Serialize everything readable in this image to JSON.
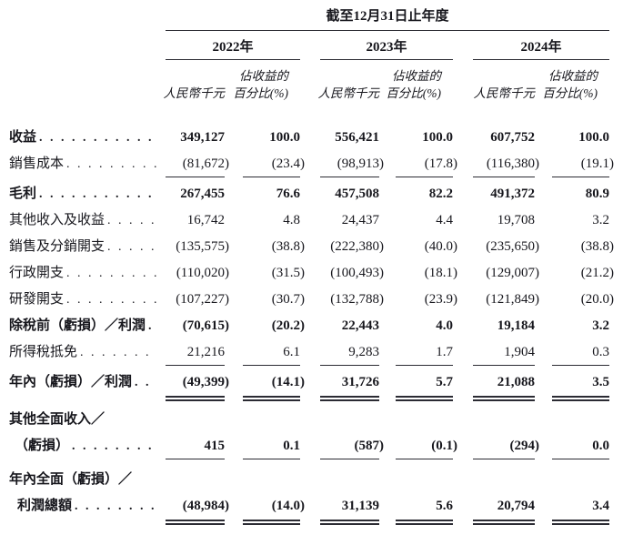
{
  "header": {
    "period_title": "截至12月31日止年度",
    "years": [
      "2022年",
      "2023年",
      "2024年"
    ],
    "pct_label_line1": "佔收益的",
    "pct_label_line2": "百分比(%)",
    "amount_label": "人民幣千元"
  },
  "table": {
    "leader_dots": ". . . . . . . . . . . . . . . . . . . . .",
    "columns": [
      "2022-amount",
      "2022-pct",
      "2023-amount",
      "2023-pct",
      "2024-amount",
      "2024-pct"
    ],
    "rows": [
      {
        "label": "收益",
        "bold": true,
        "leader": true,
        "rule": "none",
        "values": [
          "349,127",
          "100.0",
          "556,421",
          "100.0",
          "607,752",
          "100.0"
        ]
      },
      {
        "label": "銷售成本",
        "bold": false,
        "leader": true,
        "rule": "single",
        "values": [
          "(81,672)",
          "(23.4)",
          "(98,913)",
          "(17.8)",
          "(116,380)",
          "(19.1)"
        ]
      },
      {
        "label": "毛利",
        "bold": true,
        "leader": true,
        "rule": "none",
        "values": [
          "267,455",
          "76.6",
          "457,508",
          "82.2",
          "491,372",
          "80.9"
        ]
      },
      {
        "label": "其他收入及收益",
        "bold": false,
        "leader": true,
        "rule": "none",
        "values": [
          "16,742",
          "4.8",
          "24,437",
          "4.4",
          "19,708",
          "3.2"
        ]
      },
      {
        "label": "銷售及分銷開支",
        "bold": false,
        "leader": true,
        "rule": "none",
        "values": [
          "(135,575)",
          "(38.8)",
          "(222,380)",
          "(40.0)",
          "(235,650)",
          "(38.8)"
        ]
      },
      {
        "label": "行政開支",
        "bold": false,
        "leader": true,
        "rule": "none",
        "values": [
          "(110,020)",
          "(31.5)",
          "(100,493)",
          "(18.1)",
          "(129,007)",
          "(21.2)"
        ]
      },
      {
        "label": "研發開支",
        "bold": false,
        "leader": true,
        "rule": "none",
        "values": [
          "(107,227)",
          "(30.7)",
          "(132,788)",
          "(23.9)",
          "(121,849)",
          "(20.0)"
        ]
      },
      {
        "label": "除稅前（虧損）／利潤",
        "bold": true,
        "leader": true,
        "rule": "none",
        "values": [
          "(70,615)",
          "(20.2)",
          "22,443",
          "4.0",
          "19,184",
          "3.2"
        ]
      },
      {
        "label": "所得稅抵免",
        "bold": false,
        "leader": true,
        "rule": "single",
        "values": [
          "21,216",
          "6.1",
          "9,283",
          "1.7",
          "1,904",
          "0.3"
        ]
      },
      {
        "label": "年內（虧損）／利潤",
        "bold": true,
        "leader": true,
        "rule": "double",
        "values": [
          "(49,399)",
          "(14.1)",
          "31,726",
          "5.7",
          "21,088",
          "3.5"
        ]
      },
      {
        "label": "其他全面收入／",
        "bold": true,
        "leader": false,
        "rule": "none",
        "values": null
      },
      {
        "label": "（虧損）",
        "bold": true,
        "leader": true,
        "indent": 1,
        "rule": "single",
        "values": [
          "415",
          "0.1",
          "(587)",
          "(0.1)",
          "(294)",
          "0.0"
        ]
      },
      {
        "label": "年內全面（虧損）／",
        "bold": true,
        "leader": false,
        "rule": "none",
        "values": null
      },
      {
        "label": "利潤總額",
        "bold": true,
        "leader": true,
        "indent": 2,
        "rule": "double",
        "values": [
          "(48,984)",
          "(14.0)",
          "31,139",
          "5.6",
          "20,794",
          "3.4"
        ]
      }
    ]
  }
}
